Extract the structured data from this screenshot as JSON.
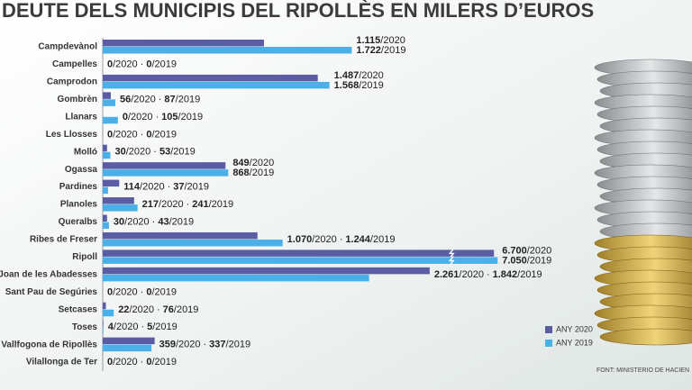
{
  "chart_data": {
    "type": "bar",
    "orientation": "horizontal",
    "title": "DEUTE DELS MUNICIPIS DEL RIPOLLÈS EN MILERS D’EUROS",
    "source": "FONT: MINISTERIO DE HACIEN",
    "broken_axis": true,
    "separator": "·",
    "categories": [
      "Campdevànol",
      "Campelles",
      "Camprodon",
      "Gombrèn",
      "Llanars",
      "Les Llosses",
      "Molló",
      "Ogassa",
      "Pardines",
      "Planoles",
      "Queralbs",
      "Ribes de Freser",
      "Ripoll",
      "Sant Joan de les Abadesses",
      "Sant Pau de Segúries",
      "Setcases",
      "Toses",
      "Vallfogona de Ripollès",
      "Vilallonga de Ter"
    ],
    "series": [
      {
        "name": "ANY 2020",
        "color": "#5a5ca4",
        "label_suffix": "/2020",
        "values": [
          1115,
          0,
          1487,
          56,
          0,
          0,
          30,
          849,
          114,
          217,
          30,
          1070,
          6700,
          2261,
          0,
          22,
          4,
          359,
          0
        ],
        "value_labels": [
          "1.115",
          "0",
          "1.487",
          "56",
          "0",
          "0",
          "30",
          "849",
          "114",
          "217",
          "30",
          "1.070",
          "6.700",
          "2.261",
          "0",
          "22",
          "4",
          "359",
          "0"
        ]
      },
      {
        "name": "ANY 2019",
        "color": "#4bb0e8",
        "label_suffix": "/2019",
        "values": [
          1722,
          0,
          1568,
          87,
          105,
          0,
          53,
          868,
          37,
          241,
          43,
          1244,
          7050,
          1842,
          0,
          76,
          5,
          337,
          0
        ],
        "value_labels": [
          "1.722",
          "0",
          "1.568",
          "87",
          "105",
          "0",
          "53",
          "868",
          "37",
          "241",
          "43",
          "1.244",
          "7.050",
          "1.842",
          "0",
          "76",
          "5",
          "337",
          "0"
        ]
      }
    ]
  }
}
